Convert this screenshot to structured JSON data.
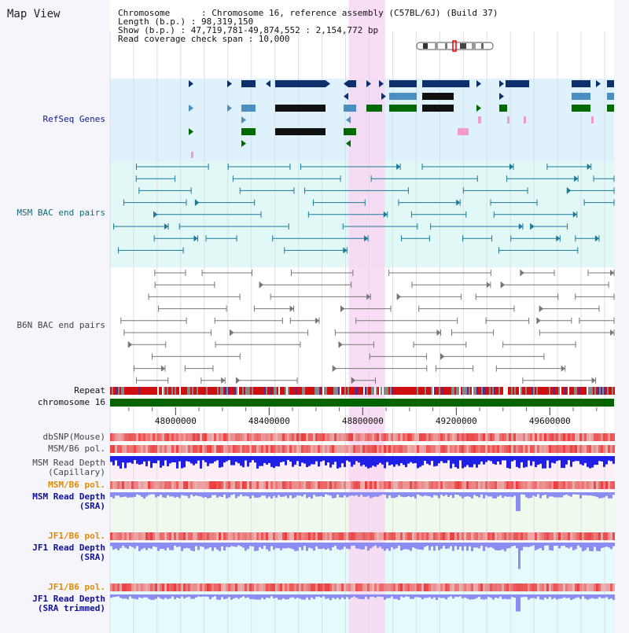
{
  "view_title": "Map View",
  "info": {
    "chromosome_label": "Chromosome      : Chromosome 16, reference assembly (C57BL/6J) (Build 37)",
    "length_label": "Length (b.p.) : 98,319,150",
    "show_label": "Show (b.p.) : 47,719,781-49,874,552 : 2,154,772 bp",
    "coverage_label": "Read coverage check span : 10,000"
  },
  "tracks": {
    "refseq": "RefSeq Genes",
    "msm_bac": "MSM BAC end pairs",
    "b6n_bac": "B6N BAC end pairs",
    "repeat": "Repeat",
    "chromosome": "chromosome 16",
    "dbsnp": "dbSNP(Mouse)",
    "msm_b6_pol_1": "MSM/B6 pol.",
    "msm_depth_cap_1": "MSM Read Depth",
    "msm_depth_cap_2": "(Capillary)",
    "msm_b6_pol_2": "MSM/B6 pol.",
    "msm_depth_sra_1": "MSM Read Depth",
    "msm_depth_sra_2": "(SRA)",
    "jf1_pol_1": "JF1/B6 pol.",
    "jf1_depth_sra_1": "JF1 Read Depth",
    "jf1_depth_sra_2": "(SRA)",
    "jf1_pol_2": "JF1/B6 pol.",
    "jf1_depth_trim_1": "JF1 Read Depth",
    "jf1_depth_trim_2": "(SRA trimmed)"
  },
  "axis": {
    "range": [
      47719781,
      49874552
    ],
    "ticks": [
      48000000,
      48400000,
      48800000,
      49200000,
      49600000
    ],
    "tick_labels": [
      "48000000",
      "48400000",
      "48800000",
      "49200000",
      "49600000"
    ]
  },
  "highlight_range": [
    48740000,
    48895000
  ],
  "colors": {
    "refseq_bg": "#dff2fb",
    "msm_bg": "#e2f8f7",
    "highlight": "#f8d7f2",
    "gene_navy": "#0d2f6b",
    "gene_steel": "#4a8fbf",
    "gene_green": "#006a00",
    "gene_pink": "#f29ac9",
    "bac_teal": "#1a7a9a",
    "bac_gray": "#777777",
    "chromosome_green": "#006400",
    "depth_blue": "#1f1fe8",
    "depth_light": "#8c8cf2"
  }
}
